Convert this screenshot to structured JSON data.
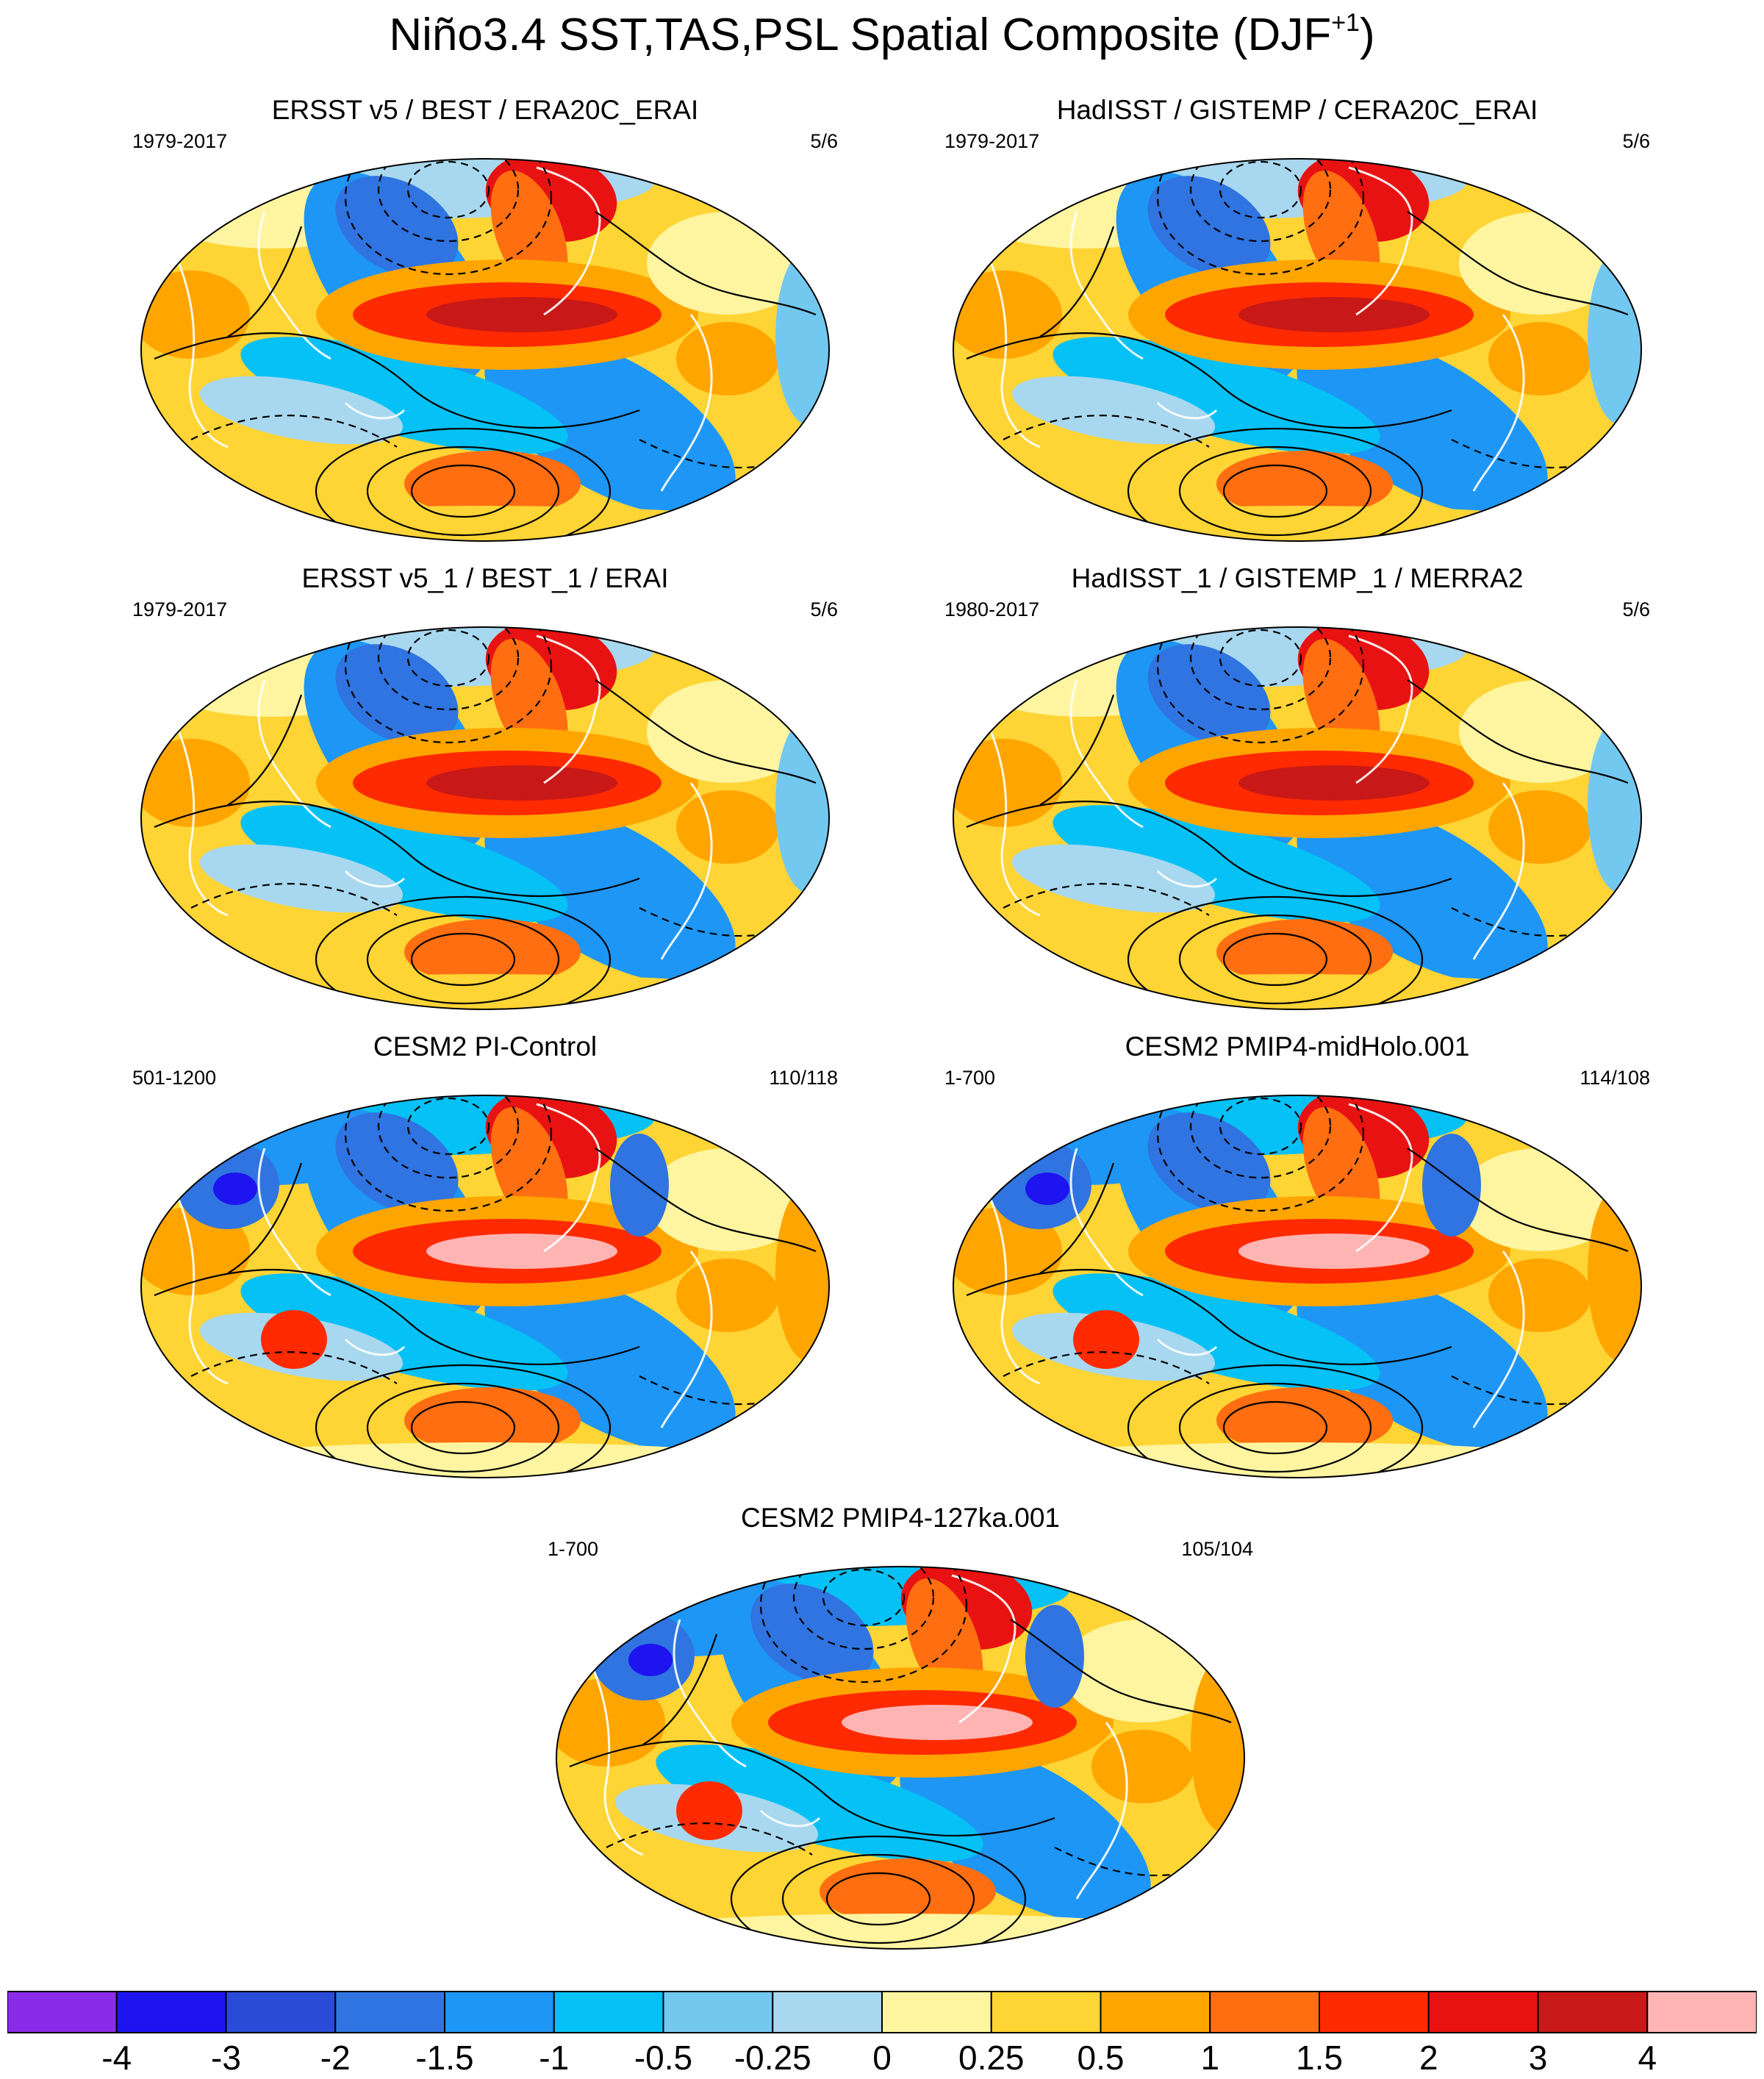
{
  "title": "Niño3.4 SST,TAS,PSL Spatial Composite (DJF",
  "title_superscript": "+1",
  "title_close": ")",
  "panels": [
    {
      "title": "ERSST v5 / BEST / ERA20C_ERAI",
      "left_label": "1979-2017",
      "right_label": "5/6",
      "variant": "obs"
    },
    {
      "title": "HadISST / GISTEMP / CERA20C_ERAI",
      "left_label": "1979-2017",
      "right_label": "5/6",
      "variant": "obs"
    },
    {
      "title": "ERSST v5_1 / BEST_1 / ERAI",
      "left_label": "1979-2017",
      "right_label": "5/6",
      "variant": "obs"
    },
    {
      "title": "HadISST_1 / GISTEMP_1 / MERRA2",
      "left_label": "1980-2017",
      "right_label": "5/6",
      "variant": "obs"
    },
    {
      "title": "CESM2 PI-Control",
      "left_label": "501-1200",
      "right_label": "110/118",
      "variant": "model"
    },
    {
      "title": "CESM2 PMIP4-midHolo.001",
      "left_label": "1-700",
      "right_label": "114/108",
      "variant": "model"
    },
    {
      "title": "CESM2 PMIP4-127ka.001",
      "left_label": "1-700",
      "right_label": "105/104",
      "variant": "model"
    }
  ],
  "colorbar": {
    "colors": [
      "#8a2be8",
      "#1e14f0",
      "#2a4bd7",
      "#2f74e0",
      "#1e96f5",
      "#05c1f5",
      "#73c8f0",
      "#a8d8ef",
      "#fff5a0",
      "#ffd435",
      "#ffa500",
      "#ff6e10",
      "#ff2a00",
      "#e81212",
      "#c81818",
      "#ffb4b4"
    ],
    "labels": [
      "-4",
      "-3",
      "-2",
      "-1.5",
      "-1",
      "-0.5",
      "-0.25",
      "0",
      "0.25",
      "0.5",
      "1",
      "1.5",
      "2",
      "3",
      "4"
    ]
  }
}
